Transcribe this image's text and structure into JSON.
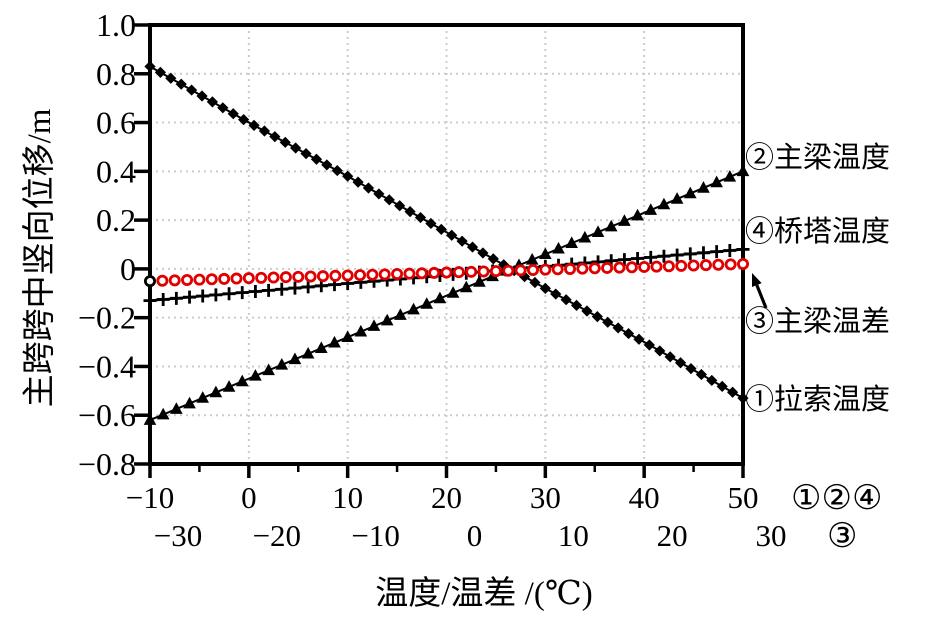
{
  "chart_data": {
    "type": "scatter",
    "title": "",
    "x_axis": {
      "title": "温度/温差 /(℃)",
      "primary": {
        "applies_to": "①②④",
        "range": [
          -10,
          50
        ],
        "tick_values": [
          -10,
          0,
          10,
          20,
          30,
          40,
          50
        ],
        "tick_labels": [
          "−10",
          "0",
          "10",
          "20",
          "30",
          "40",
          "50"
        ],
        "minor_step": 5
      },
      "secondary": {
        "applies_to": "③",
        "range": [
          -30,
          30
        ],
        "tick_values": [
          -30,
          -20,
          -10,
          0,
          10,
          20,
          30
        ],
        "tick_labels": [
          "−30",
          "−20",
          "−10",
          "0",
          "10",
          "20",
          "30"
        ]
      }
    },
    "y_axis": {
      "title": "主跨跨中竖向位移/m",
      "range": [
        -0.8,
        1.0
      ],
      "tick_values": [
        1.0,
        0.8,
        0.6,
        0.4,
        0.2,
        0,
        -0.2,
        -0.4,
        -0.6,
        -0.8
      ],
      "tick_labels": [
        "1.0",
        "0.8",
        "0.6",
        "0.4",
        "0.2",
        "0",
        "−0.2",
        "−0.4",
        "−0.6",
        "−0.8"
      ]
    },
    "grid": {
      "show": true,
      "style": "dotted",
      "color": "#cccccc"
    },
    "series": [
      {
        "id": "①",
        "name": "拉索温度",
        "marker": "diamond",
        "color": "#000000",
        "x_scale": "primary",
        "x": [
          -10,
          0,
          10,
          20,
          30,
          40,
          50
        ],
        "y": [
          0.83,
          0.6,
          0.38,
          0.15,
          -0.08,
          -0.3,
          -0.53
        ],
        "marker_count": 58,
        "connect_line": true
      },
      {
        "id": "②",
        "name": "主梁温度",
        "marker": "triangle-up",
        "color": "#000000",
        "x_scale": "primary",
        "x": [
          -10,
          0,
          10,
          20,
          30,
          40,
          50
        ],
        "y": [
          -0.62,
          -0.45,
          -0.28,
          -0.11,
          0.06,
          0.23,
          0.4
        ],
        "marker_count": 46,
        "connect_line": true
      },
      {
        "id": "④",
        "name": "桥塔温度",
        "marker": "plus",
        "color": "#000000",
        "x_scale": "primary",
        "x": [
          -10,
          0,
          10,
          20,
          30,
          40,
          50
        ],
        "y": [
          -0.13,
          -0.095,
          -0.06,
          -0.025,
          0.01,
          0.045,
          0.08
        ],
        "marker_count": 46,
        "connect_line": true
      },
      {
        "id": "③",
        "name": "主梁温差",
        "marker": "open-circle",
        "color": "#e00000",
        "x_scale": "secondary",
        "x": [
          -30,
          -20,
          -10,
          0,
          10,
          20,
          30
        ],
        "y": [
          -0.05,
          -0.038,
          -0.027,
          -0.015,
          -0.003,
          0.008,
          0.02
        ],
        "marker_count": 49,
        "connect_line": false,
        "first_marker_color": "#000000"
      }
    ],
    "legend": {
      "position": "right",
      "entries": [
        "②主梁温度",
        "④桥塔温度",
        "③主梁温差",
        "①拉索温度"
      ]
    },
    "annotations": {
      "scale_note_primary": "①②④",
      "scale_note_secondary": "③",
      "arrow_points_to": "③ series end point"
    }
  },
  "colors": {
    "black": "#000000",
    "accent_red": "#e00000",
    "grid": "#cccccc"
  }
}
